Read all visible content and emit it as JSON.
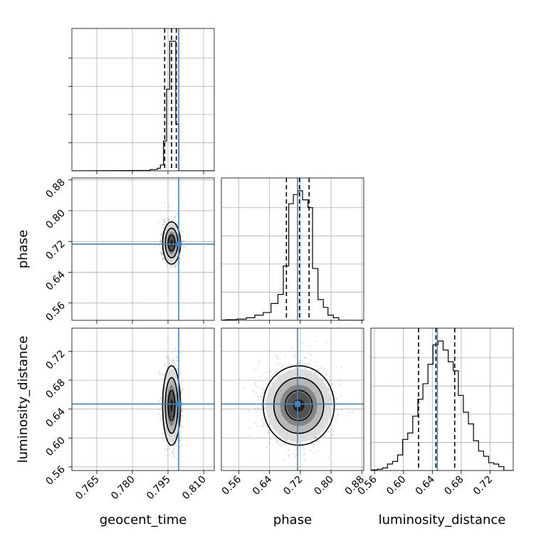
{
  "chart_data": {
    "type": "corner",
    "parameters": [
      {
        "name": "geocent_time",
        "ticks": [
          "0.765",
          "0.780",
          "0.795",
          "0.810"
        ],
        "tick_values": [
          0.765,
          0.78,
          0.795,
          0.81
        ],
        "range": [
          0.7545,
          0.8145
        ],
        "truth": 0.7995,
        "quantiles": [
          0.7936,
          0.7965,
          0.7985
        ]
      },
      {
        "name": "phase",
        "ticks": [
          "0.56",
          "0.64",
          "0.72",
          "0.80",
          "0.88"
        ],
        "tick_values": [
          0.56,
          0.64,
          0.72,
          0.8,
          0.88
        ],
        "range": [
          0.515,
          0.885
        ],
        "truth": 0.713,
        "quantiles": [
          0.684,
          0.718,
          0.743
        ]
      },
      {
        "name": "luminosity_distance",
        "ticks": [
          "0.56",
          "0.60",
          "0.64",
          "0.68",
          "0.72"
        ],
        "tick_values": [
          0.56,
          0.6,
          0.64,
          0.68,
          0.72
        ],
        "range": [
          0.555,
          0.752
        ],
        "truth": 0.647,
        "quantiles": [
          0.621,
          0.645,
          0.671
        ]
      }
    ],
    "histograms": {
      "geocent_time": {
        "bin_edges": [
          0.7845,
          0.7875,
          0.7905,
          0.7918,
          0.7931,
          0.7944,
          0.7957,
          0.797,
          0.7983,
          0.7996,
          0.8009
        ],
        "counts": [
          0.003,
          0.01,
          0.02,
          0.045,
          0.23,
          0.63,
          1.0,
          1.0,
          0.36,
          0.0
        ]
      },
      "phase": {
        "bin_edges": [
          0.53,
          0.556,
          0.58,
          0.602,
          0.624,
          0.644,
          0.662,
          0.676,
          0.69,
          0.702,
          0.714,
          0.726,
          0.74,
          0.752,
          0.766,
          0.78,
          0.792,
          0.806,
          0.82,
          0.834
        ],
        "counts": [
          0.005,
          0.01,
          0.02,
          0.04,
          0.06,
          0.13,
          0.2,
          0.42,
          0.9,
          0.97,
          1.0,
          0.93,
          0.87,
          0.4,
          0.16,
          0.1,
          0.04,
          0.02,
          0.0
        ]
      },
      "luminosity_distance": {
        "bin_edges": [
          0.557,
          0.564,
          0.571,
          0.578,
          0.585,
          0.592,
          0.599,
          0.606,
          0.613,
          0.62,
          0.627,
          0.634,
          0.641,
          0.648,
          0.655,
          0.662,
          0.669,
          0.676,
          0.683,
          0.69,
          0.697,
          0.704,
          0.711,
          0.718,
          0.725,
          0.732,
          0.739,
          0.752
        ],
        "counts": [
          0.005,
          0.01,
          0.02,
          0.05,
          0.07,
          0.12,
          0.24,
          0.29,
          0.42,
          0.55,
          0.67,
          0.82,
          0.97,
          1.0,
          0.93,
          0.84,
          0.77,
          0.58,
          0.45,
          0.36,
          0.23,
          0.15,
          0.11,
          0.06,
          0.05,
          0.03,
          0.0
        ]
      }
    },
    "pairs": [
      {
        "x": "geocent_time",
        "y": "phase",
        "center": [
          0.7965,
          0.716
        ],
        "sigma": [
          0.0015,
          0.022
        ]
      },
      {
        "x": "geocent_time",
        "y": "luminosity_distance",
        "center": [
          0.7965,
          0.645
        ],
        "sigma": [
          0.0015,
          0.022
        ]
      },
      {
        "x": "phase",
        "y": "luminosity_distance",
        "center": [
          0.716,
          0.645
        ],
        "sigma": [
          0.037,
          0.022
        ]
      }
    ],
    "grid": true,
    "colors": {
      "truth": "#4682b4",
      "hist": "#000000",
      "quantile": "#000000",
      "points": "#999999",
      "grid": "#b0b0b0"
    }
  }
}
